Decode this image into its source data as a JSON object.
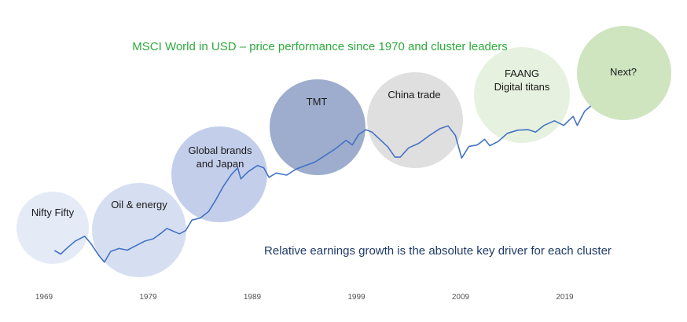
{
  "chart_data": {
    "type": "line",
    "title": "MSCI World in USD – price performance since 1970 and cluster leaders",
    "subtitle": "Relative earnings growth is the absolute key driver for each cluster",
    "x_ticks": [
      "1969",
      "1979",
      "1989",
      "1999",
      "2009",
      "2019"
    ],
    "xlim": [
      1969,
      2029
    ],
    "log_scale": true,
    "grid": false,
    "series": [
      {
        "color": "#4472c4",
        "points": [
          [
            1970.0,
            100
          ],
          [
            1970.6,
            92
          ],
          [
            1971.3,
            108
          ],
          [
            1972.0,
            125
          ],
          [
            1972.9,
            140
          ],
          [
            1973.5,
            118
          ],
          [
            1974.3,
            88
          ],
          [
            1974.8,
            76
          ],
          [
            1975.4,
            98
          ],
          [
            1976.2,
            105
          ],
          [
            1977.0,
            101
          ],
          [
            1977.8,
            112
          ],
          [
            1978.7,
            125
          ],
          [
            1979.5,
            132
          ],
          [
            1980.3,
            152
          ],
          [
            1980.8,
            168
          ],
          [
            1981.4,
            158
          ],
          [
            1982.0,
            148
          ],
          [
            1982.6,
            160
          ],
          [
            1983.2,
            205
          ],
          [
            1984.0,
            215
          ],
          [
            1984.8,
            250
          ],
          [
            1985.5,
            330
          ],
          [
            1986.2,
            450
          ],
          [
            1987.0,
            600
          ],
          [
            1987.6,
            700
          ],
          [
            1987.9,
            540
          ],
          [
            1988.6,
            640
          ],
          [
            1989.5,
            740
          ],
          [
            1990.1,
            700
          ],
          [
            1990.6,
            560
          ],
          [
            1991.3,
            620
          ],
          [
            1992.3,
            590
          ],
          [
            1993.2,
            680
          ],
          [
            1994.1,
            740
          ],
          [
            1995.0,
            800
          ],
          [
            1996.0,
            940
          ],
          [
            1997.0,
            1100
          ],
          [
            1998.0,
            1340
          ],
          [
            1998.6,
            1200
          ],
          [
            1999.2,
            1530
          ],
          [
            1999.9,
            1720
          ],
          [
            2000.5,
            1620
          ],
          [
            2001.3,
            1350
          ],
          [
            2002.0,
            1150
          ],
          [
            2002.7,
            900
          ],
          [
            2003.2,
            900
          ],
          [
            2004.0,
            1120
          ],
          [
            2005.0,
            1250
          ],
          [
            2006.0,
            1500
          ],
          [
            2007.0,
            1760
          ],
          [
            2007.8,
            1880
          ],
          [
            2008.5,
            1500
          ],
          [
            2009.1,
            880
          ],
          [
            2009.8,
            1160
          ],
          [
            2010.6,
            1200
          ],
          [
            2011.3,
            1370
          ],
          [
            2011.8,
            1180
          ],
          [
            2012.6,
            1300
          ],
          [
            2013.5,
            1580
          ],
          [
            2014.5,
            1700
          ],
          [
            2015.5,
            1720
          ],
          [
            2016.2,
            1620
          ],
          [
            2017.0,
            1900
          ],
          [
            2018.0,
            2120
          ],
          [
            2018.9,
            1900
          ],
          [
            2019.8,
            2350
          ],
          [
            2020.2,
            1900
          ],
          [
            2020.9,
            2650
          ],
          [
            2021.5,
            3000
          ]
        ]
      }
    ],
    "clusters": [
      {
        "label_lines": [
          "Nifty Fifty"
        ],
        "color": "#dfe8f6",
        "period": [
          1967.5,
          1977.5
        ]
      },
      {
        "label_lines": [
          "Oil & energy"
        ],
        "color": "#cfd9ef",
        "period": [
          1977.5,
          1987.5
        ]
      },
      {
        "label_lines": [
          "Global brands",
          "and Japan"
        ],
        "color": "#b9c6e8",
        "period": [
          1987.5,
          1997.5
        ]
      },
      {
        "label_lines": [
          "TMT"
        ],
        "color": "#8d9fc4",
        "period": [
          1997.5,
          2007.5
        ]
      },
      {
        "label_lines": [
          "China trade"
        ],
        "color": "#d9d9d9",
        "period": [
          2007.5,
          2017.5
        ]
      },
      {
        "label_lines": [
          "FAANG",
          "Digital titans"
        ],
        "color": "#e2f0d9",
        "period": [
          2017.5,
          2027.5
        ]
      },
      {
        "label_lines": [
          "Next?"
        ],
        "color": "#c5e0b4",
        "period": [
          2027.5,
          2037.5
        ]
      }
    ],
    "colors": {
      "title": "#2eaa3c",
      "subtitle": "#1f3a68"
    }
  }
}
